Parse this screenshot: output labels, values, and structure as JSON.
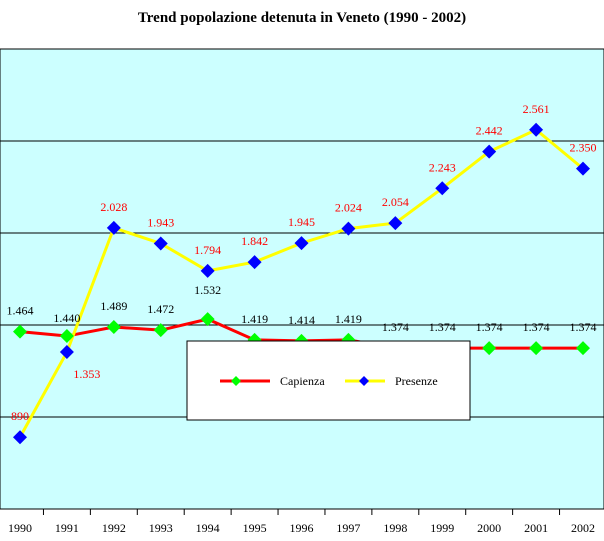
{
  "chart_data": {
    "type": "line",
    "title": "Trend popolazione detenuta in Veneto (1990 - 2002)",
    "xlabel": "",
    "ylabel": "",
    "categories": [
      "1990",
      "1991",
      "1992",
      "1993",
      "1994",
      "1995",
      "1996",
      "1997",
      "1998",
      "1999",
      "2000",
      "2001",
      "2002"
    ],
    "ylim": [
      500,
      3000
    ],
    "grid": true,
    "legend_position": "center-bottom",
    "plot_background": "#ccffff",
    "series": [
      {
        "name": "Capienza",
        "values": [
          1464,
          1440,
          1489,
          1472,
          1532,
          1419,
          1414,
          1419,
          1374,
          1374,
          1374,
          1374,
          1374
        ],
        "labels": [
          "1.464",
          "1.440",
          "1.489",
          "1.472",
          "1.532",
          "1.419",
          "1.414",
          "1.419",
          "1.374",
          "1.374",
          "1.374",
          "1.374",
          "1.374"
        ],
        "line_color": "#ff0000",
        "marker_color": "#00ff00",
        "label_color": "#000000"
      },
      {
        "name": "Presenze",
        "values": [
          890,
          1353,
          2028,
          1943,
          1794,
          1842,
          1945,
          2024,
          2054,
          2243,
          2442,
          2561,
          2350
        ],
        "labels": [
          "890",
          "1.353",
          "2.028",
          "1.943",
          "1.794",
          "1.842",
          "1.945",
          "2.024",
          "2.054",
          "2.243",
          "2.442",
          "2.561",
          "2.350"
        ],
        "line_color": "#ffff00",
        "marker_color": "#0000ff",
        "label_color": "#ff0000"
      }
    ]
  }
}
